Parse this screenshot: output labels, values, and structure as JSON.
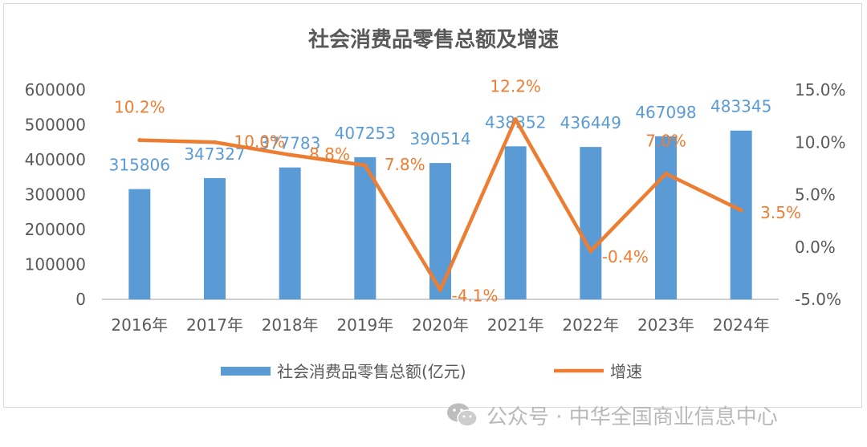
{
  "chart_data": {
    "type": "bar",
    "title": "社会消费品零售总额及增速",
    "categories": [
      "2016年",
      "2017年",
      "2018年",
      "2019年",
      "2020年",
      "2021年",
      "2022年",
      "2023年",
      "2024年"
    ],
    "series": [
      {
        "name": "社会消费品零售总额(亿元)",
        "type": "bar",
        "axis": "left",
        "values": [
          315806,
          347327,
          377783,
          407253,
          390514,
          438352,
          436449,
          467098,
          483345
        ],
        "labels": [
          "315806",
          "347327",
          "377783",
          "407253",
          "390514",
          "438352",
          "436449",
          "467098",
          "483345"
        ],
        "color": "#5b9bd5"
      },
      {
        "name": "增速",
        "type": "line",
        "axis": "right",
        "values": [
          10.2,
          10.0,
          8.8,
          7.8,
          -4.1,
          12.2,
          -0.4,
          7.0,
          3.5
        ],
        "labels": [
          "10.2%",
          "10.0%",
          "8.8%",
          "7.8%",
          "-4.1%",
          "12.2%",
          "-0.4%",
          "7.0%",
          "3.5%"
        ],
        "color": "#ed7d31"
      }
    ],
    "y_left": {
      "min": 0,
      "max": 600000,
      "ticks": [
        "0",
        "100000",
        "200000",
        "300000",
        "400000",
        "500000",
        "600000"
      ]
    },
    "y_right": {
      "min": -5,
      "max": 15,
      "ticks": [
        "-5.0%",
        "0.0%",
        "5.0%",
        "10.0%",
        "15.0%"
      ]
    },
    "legend_position": "bottom",
    "grid": false
  },
  "watermark": {
    "text": "公众号 · 中华全国商业信息中心",
    "icon": "wechat-icon"
  }
}
